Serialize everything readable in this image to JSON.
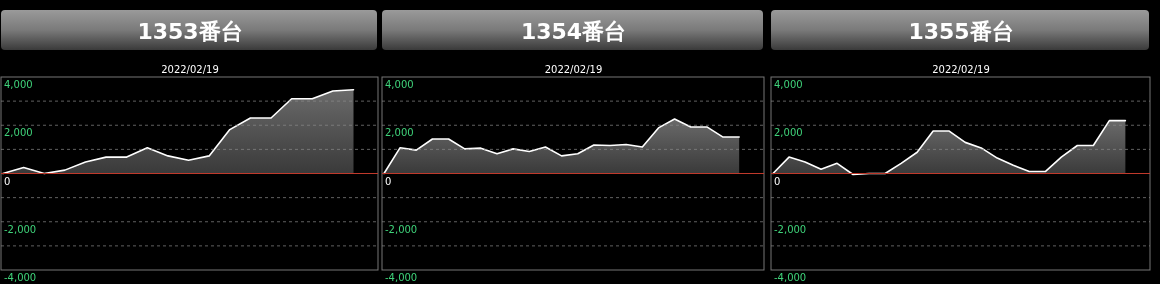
{
  "chart_data": [
    {
      "type": "area",
      "title": "1353番台",
      "subtitle": "2022/02/19",
      "categories": [
        null,
        null,
        null,
        null,
        null,
        null,
        null,
        null,
        null,
        null,
        null,
        null,
        null,
        null,
        null,
        null,
        null,
        null
      ],
      "series": [
        {
          "color": "#ffffff",
          "values": [
            0,
            250,
            0,
            140,
            480,
            680,
            680,
            1070,
            730,
            550,
            730,
            1820,
            2300,
            2300,
            3100,
            3100,
            3420,
            3470
          ]
        }
      ],
      "ylim": [
        -4000,
        4000
      ],
      "yticks": [
        {
          "value": -4000,
          "label": "-4,000"
        },
        {
          "value": -3000,
          "label": null
        },
        {
          "value": -2000,
          "label": "-2,000"
        },
        {
          "value": -1000,
          "label": null
        },
        {
          "value": 0,
          "label": "0"
        },
        {
          "value": 1000,
          "label": null
        },
        {
          "value": 2000,
          "label": "2,000"
        },
        {
          "value": 3000,
          "label": null
        },
        {
          "value": 4000,
          "label": "4,000"
        }
      ],
      "grid": "y",
      "tick_labels": "y",
      "ref_lines": [
        {
          "axis": "y",
          "value": 0,
          "color": "#c0392b"
        }
      ]
    },
    {
      "type": "area",
      "title": "1354番台",
      "subtitle": "2022/02/19",
      "categories": [
        null,
        null,
        null,
        null,
        null,
        null,
        null,
        null,
        null,
        null,
        null,
        null,
        null,
        null,
        null,
        null,
        null,
        null,
        null,
        null,
        null,
        null,
        null
      ],
      "series": [
        {
          "color": "#ffffff",
          "values": [
            0,
            1070,
            970,
            1430,
            1430,
            1020,
            1050,
            820,
            1020,
            910,
            1100,
            730,
            820,
            1180,
            1160,
            1200,
            1100,
            1890,
            2260,
            1930,
            1930,
            1510,
            1510
          ]
        }
      ],
      "ylim": [
        -4000,
        4000
      ],
      "yticks": [
        {
          "value": -4000,
          "label": "-4,000"
        },
        {
          "value": -3000,
          "label": null
        },
        {
          "value": -2000,
          "label": "-2,000"
        },
        {
          "value": -1000,
          "label": null
        },
        {
          "value": 0,
          "label": "0"
        },
        {
          "value": 1000,
          "label": null
        },
        {
          "value": 2000,
          "label": "2,000"
        },
        {
          "value": 3000,
          "label": null
        },
        {
          "value": 4000,
          "label": "4,000"
        }
      ],
      "grid": "y",
      "tick_labels": "y",
      "ref_lines": [
        {
          "axis": "y",
          "value": 0,
          "color": "#c0392b"
        }
      ]
    },
    {
      "type": "area",
      "title": "1355番台",
      "subtitle": "2022/02/19",
      "categories": [
        null,
        null,
        null,
        null,
        null,
        null,
        null,
        null,
        null,
        null,
        null,
        null,
        null,
        null,
        null,
        null,
        null,
        null,
        null,
        null,
        null,
        null,
        null
      ],
      "series": [
        {
          "color": "#ffffff",
          "values": [
            0,
            680,
            480,
            180,
            420,
            -40,
            0,
            0,
            420,
            880,
            1760,
            1760,
            1290,
            1060,
            640,
            340,
            80,
            80,
            680,
            1160,
            1160,
            2190,
            2190
          ]
        }
      ],
      "ylim": [
        -4000,
        4000
      ],
      "yticks": [
        {
          "value": -4000,
          "label": "-4,000"
        },
        {
          "value": -3000,
          "label": null
        },
        {
          "value": -2000,
          "label": "-2,000"
        },
        {
          "value": -1000,
          "label": null
        },
        {
          "value": 0,
          "label": "0"
        },
        {
          "value": 1000,
          "label": null
        },
        {
          "value": 2000,
          "label": "2,000"
        },
        {
          "value": 3000,
          "label": null
        },
        {
          "value": 4000,
          "label": "4,000"
        }
      ],
      "grid": "y",
      "tick_labels": "y",
      "ref_lines": [
        {
          "axis": "y",
          "value": 0,
          "color": "#c0392b"
        }
      ]
    }
  ]
}
